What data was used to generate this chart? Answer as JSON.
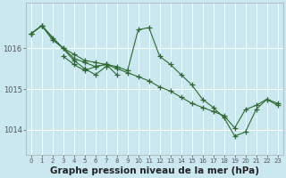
{
  "background_color": "#cbe8f0",
  "grid_color": "#ffffff",
  "line_color": "#2d6a2d",
  "marker_color": "#2d6a2d",
  "xlabel": "Graphe pression niveau de la mer (hPa)",
  "xlabel_fontsize": 7.5,
  "ylim": [
    1013.4,
    1017.1
  ],
  "yticks": [
    1014,
    1015,
    1016
  ],
  "xlim": [
    -0.5,
    23.5
  ],
  "xticks": [
    0,
    1,
    2,
    3,
    4,
    5,
    6,
    7,
    8,
    9,
    10,
    11,
    12,
    13,
    14,
    15,
    16,
    17,
    18,
    19,
    20,
    21,
    22,
    23
  ],
  "series": [
    {
      "x": [
        0,
        1,
        2,
        3,
        4,
        5,
        6,
        7,
        8,
        9,
        10,
        11,
        12,
        13,
        14,
        15,
        16,
        17,
        18,
        19,
        20,
        21,
        22,
        23
      ],
      "y": [
        1016.35,
        1016.55,
        1016.25,
        1016.0,
        1015.85,
        1015.7,
        1015.65,
        1015.6,
        1015.5,
        1015.4,
        1015.3,
        1015.2,
        1015.05,
        1014.95,
        1014.8,
        1014.65,
        1014.55,
        1014.45,
        1014.35,
        1014.05,
        1014.5,
        1014.6,
        1014.75,
        1014.6
      ]
    },
    {
      "x": [
        0,
        1,
        2,
        3,
        4,
        5,
        6,
        7,
        8,
        9,
        10,
        11,
        12,
        13,
        14,
        15,
        16,
        17,
        18,
        19,
        20,
        21,
        22,
        23
      ],
      "y": [
        1016.35,
        1016.55,
        1016.2,
        1016.0,
        1015.75,
        1015.65,
        1015.55,
        1015.6,
        1015.55,
        1015.45,
        1016.45,
        1016.5,
        1015.8,
        1015.6,
        1015.35,
        1015.1,
        1014.75,
        1014.55,
        1014.3,
        1013.85,
        1013.95,
        1014.5,
        1014.75,
        1014.65
      ]
    },
    {
      "x": [
        0,
        1,
        4,
        5,
        6,
        7
      ],
      "y": [
        1016.35,
        1016.55,
        1015.7,
        1015.5,
        1015.35,
        1015.55
      ]
    },
    {
      "x": [
        3,
        4,
        5,
        6,
        7,
        8
      ],
      "y": [
        1015.8,
        1015.6,
        1015.45,
        1015.55,
        1015.6,
        1015.35
      ]
    }
  ]
}
